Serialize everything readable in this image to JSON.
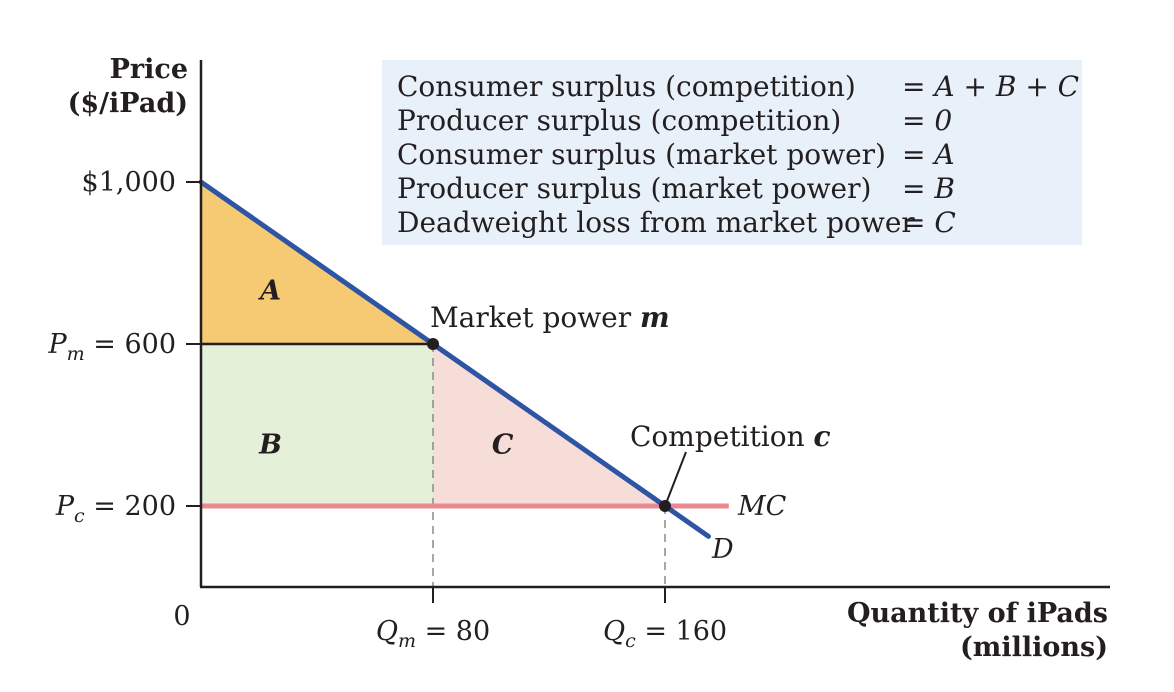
{
  "chart_data": {
    "type": "line",
    "y_axis": {
      "title_line1": "Price",
      "title_line2": "($/iPad)",
      "ticks": [
        {
          "value": 1000,
          "label": "$1,000",
          "prefix": "",
          "sub": ""
        },
        {
          "value": 600,
          "label": "= 600",
          "prefix": "P",
          "sub": "m"
        },
        {
          "value": 200,
          "label": "= 200",
          "prefix": "P",
          "sub": "c"
        }
      ],
      "ylim": [
        0,
        1000
      ]
    },
    "x_axis": {
      "title_line1": "Quantity of iPads",
      "title_line2": "(millions)",
      "origin_label": "0",
      "ticks": [
        {
          "value": 80,
          "label": "= 80",
          "prefix": "Q",
          "sub": "m"
        },
        {
          "value": 160,
          "label": "= 160",
          "prefix": "Q",
          "sub": "c"
        }
      ],
      "xlim": [
        0,
        315
      ]
    },
    "curves": [
      {
        "name": "D",
        "points": [
          [
            0,
            1000
          ],
          [
            175,
            125
          ]
        ],
        "color": "#2e54a4"
      },
      {
        "name": "MC",
        "points": [
          [
            0,
            200
          ],
          [
            182,
            200
          ]
        ],
        "color": "#e88a8f"
      }
    ],
    "regions": [
      {
        "name": "A",
        "polygon": [
          [
            0,
            1000
          ],
          [
            80,
            600
          ],
          [
            0,
            600
          ]
        ],
        "color": "#f5ca72",
        "label_at": [
          24,
          710
        ]
      },
      {
        "name": "B",
        "polygon": [
          [
            0,
            600
          ],
          [
            80,
            600
          ],
          [
            80,
            200
          ],
          [
            0,
            200
          ]
        ],
        "color": "#e5f0d8",
        "label_at": [
          24,
          330
        ]
      },
      {
        "name": "C",
        "polygon": [
          [
            80,
            600
          ],
          [
            160,
            200
          ],
          [
            80,
            200
          ]
        ],
        "color": "#f7ddd7",
        "label_at": [
          104,
          330
        ]
      }
    ],
    "points": [
      {
        "name": "m",
        "x": 80,
        "y": 600,
        "label_text": "Market power",
        "label_var": "m"
      },
      {
        "name": "c",
        "x": 160,
        "y": 200,
        "label_text": "Competition",
        "label_var": "c"
      }
    ],
    "legend": {
      "placement": "top-right",
      "background": "#e8f0fa",
      "rows": [
        {
          "label": "Consumer surplus (competition)",
          "value": "= A + B + C"
        },
        {
          "label": "Producer surplus (competition)",
          "value": "= 0"
        },
        {
          "label": "Consumer surplus (market power)",
          "value": "= A"
        },
        {
          "label": "Producer surplus (market power)",
          "value": "= B"
        },
        {
          "label": "Deadweight loss from market power",
          "value": "= C"
        }
      ]
    }
  }
}
